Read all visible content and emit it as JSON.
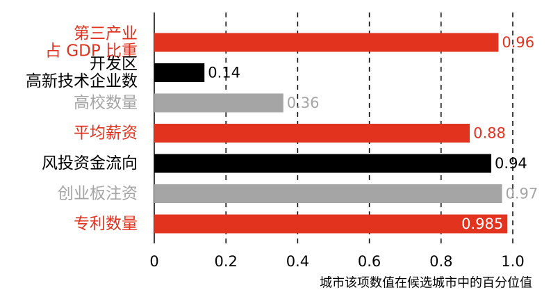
{
  "chart_data": {
    "type": "bar",
    "orientation": "horizontal",
    "categories": [
      [
        "第三产业",
        "占 GDP 比重"
      ],
      [
        "开发区",
        "高新技术企业数"
      ],
      [
        "高校数量"
      ],
      [
        "平均薪资"
      ],
      [
        "风投资金流向"
      ],
      [
        "创业板注资"
      ],
      [
        "专利数量"
      ]
    ],
    "values": [
      0.96,
      0.14,
      0.36,
      0.88,
      0.94,
      0.97,
      0.985
    ],
    "value_labels": [
      "0.96",
      "0.14",
      "0.36",
      "0.88",
      "0.94",
      "0.97",
      "0.985"
    ],
    "bar_colors": [
      "#e2331f",
      "#000000",
      "#a5a5a5",
      "#e2331f",
      "#000000",
      "#a5a5a5",
      "#e2331f"
    ],
    "label_colors": [
      "#e2331f",
      "#000000",
      "#a5a5a5",
      "#e2331f",
      "#000000",
      "#a5a5a5",
      "#e2331f"
    ],
    "value_label_inside_last": true,
    "xlim": [
      0,
      1.0
    ],
    "xticks": [
      "0",
      "0.2",
      "0.4",
      "0.6",
      "0.8",
      "1.0"
    ],
    "xlabel": "城市该项数值在候选城市中的百分位值",
    "grid": "vertical-dashed"
  }
}
